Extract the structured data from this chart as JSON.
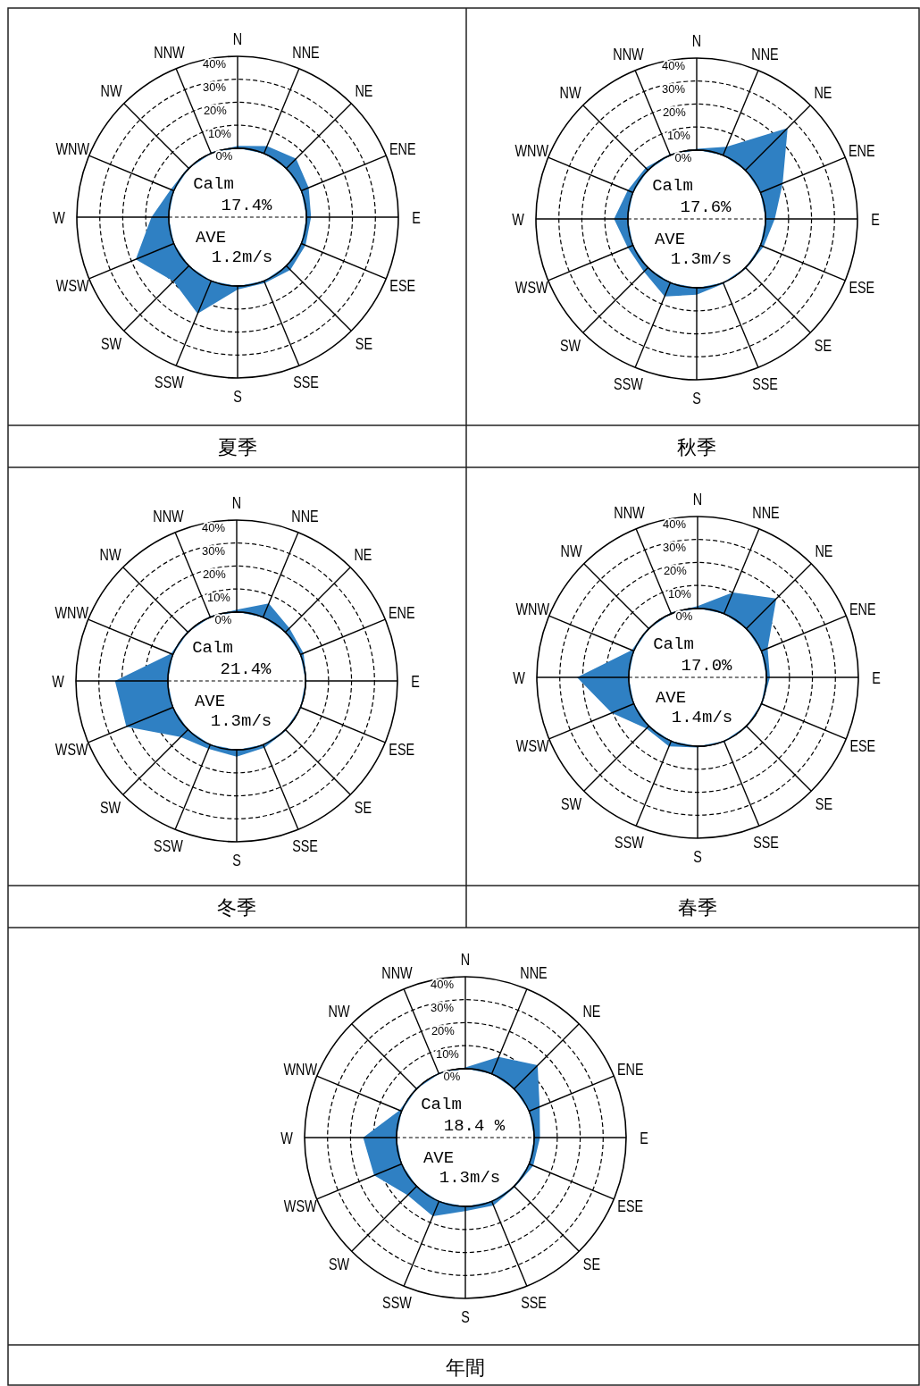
{
  "chart_data": [
    {
      "type": "radar",
      "title": "夏季",
      "categories": [
        "N",
        "NNE",
        "NE",
        "ENE",
        "E",
        "ESE",
        "SE",
        "SSE",
        "S",
        "SSW",
        "SW",
        "WSW",
        "W",
        "WNW",
        "NW",
        "NNW"
      ],
      "series": [
        {
          "color": "#2f80c3",
          "values": [
            1,
            3.5,
            6,
            3.5,
            2,
            2,
            2.5,
            1,
            1.5,
            15.5,
            9.5,
            18,
            7.5,
            1.5,
            0.5,
            0.5
          ]
        }
      ],
      "ylim": [
        -30,
        40
      ],
      "yticks": [
        {
          "value": 0,
          "label": "0%"
        },
        {
          "value": 10,
          "label": "10%"
        },
        {
          "value": 20,
          "label": "20%"
        },
        {
          "value": 30,
          "label": "30%"
        },
        {
          "value": 40,
          "label": "40%"
        }
      ],
      "grid": true,
      "annotations": [
        "Calm",
        "17.4%",
        "AVE",
        "1.2m/s"
      ]
    },
    {
      "type": "radar",
      "title": "秋季",
      "categories": [
        "N",
        "NNE",
        "NE",
        "ENE",
        "E",
        "ESE",
        "SE",
        "SSE",
        "S",
        "SSW",
        "SW",
        "WSW",
        "W",
        "WNW",
        "NW",
        "NNW"
      ],
      "series": [
        {
          "color": "#2f80c3",
          "values": [
            0.5,
            4,
            26,
            10.5,
            4,
            1.5,
            0.5,
            0.5,
            3,
            6.5,
            2.5,
            2.5,
            6,
            2.5,
            1.5,
            0.5
          ]
        }
      ],
      "ylim": [
        -30,
        40
      ],
      "yticks": [
        {
          "value": 0,
          "label": "0%"
        },
        {
          "value": 10,
          "label": "10%"
        },
        {
          "value": 20,
          "label": "20%"
        },
        {
          "value": 30,
          "label": "30%"
        },
        {
          "value": 40,
          "label": "40%"
        }
      ],
      "grid": true,
      "annotations": [
        "Calm",
        "17.6%",
        "AVE",
        "1.3m/s"
      ]
    },
    {
      "type": "radar",
      "title": "冬季",
      "categories": [
        "N",
        "NNE",
        "NE",
        "ENE",
        "E",
        "ESE",
        "SE",
        "SSE",
        "S",
        "SSW",
        "SW",
        "WSW",
        "W",
        "WNW",
        "NW",
        "NNW"
      ],
      "series": [
        {
          "color": "#2f80c3",
          "values": [
            1,
            6.5,
            2.5,
            1.5,
            0.5,
            0.5,
            0.5,
            1.5,
            3,
            2,
            4.5,
            22,
            23,
            1,
            0.5,
            0.5
          ]
        }
      ],
      "ylim": [
        -30,
        40
      ],
      "yticks": [
        {
          "value": 0,
          "label": "0%"
        },
        {
          "value": 10,
          "label": "10%"
        },
        {
          "value": 20,
          "label": "20%"
        },
        {
          "value": 30,
          "label": "30%"
        },
        {
          "value": 40,
          "label": "40%"
        }
      ],
      "grid": true,
      "annotations": [
        "Calm",
        "21.4%",
        "AVE",
        "1.3m/s"
      ]
    },
    {
      "type": "radar",
      "title": "春季",
      "categories": [
        "N",
        "NNE",
        "NE",
        "ENE",
        "E",
        "ESE",
        "SE",
        "SSE",
        "S",
        "SSW",
        "SW",
        "WSW",
        "W",
        "WNW",
        "NW",
        "NNW"
      ],
      "series": [
        {
          "color": "#2f80c3",
          "values": [
            1,
            10,
            18.5,
            3,
            1.5,
            0.5,
            0.5,
            0.5,
            0.5,
            2.5,
            1.5,
            10.5,
            22.5,
            1,
            0.5,
            0.5
          ]
        }
      ],
      "ylim": [
        -30,
        40
      ],
      "yticks": [
        {
          "value": 0,
          "label": "0%"
        },
        {
          "value": 10,
          "label": "10%"
        },
        {
          "value": 20,
          "label": "20%"
        },
        {
          "value": 30,
          "label": "30%"
        },
        {
          "value": 40,
          "label": "40%"
        }
      ],
      "grid": true,
      "annotations": [
        "Calm",
        "17.0%",
        "AVE",
        "1.4m/s"
      ]
    },
    {
      "type": "radar",
      "title": "年間",
      "categories": [
        "N",
        "NNE",
        "NE",
        "ENE",
        "E",
        "ESE",
        "SE",
        "SSE",
        "S",
        "SSW",
        "SW",
        "WSW",
        "W",
        "WNW",
        "NW",
        "NNW"
      ],
      "series": [
        {
          "color": "#2f80c3",
          "values": [
            0.5,
            8,
            14.5,
            5,
            2.5,
            2,
            0.5,
            2,
            2,
            7,
            5.5,
            13,
            14.5,
            1,
            0.5,
            0.5
          ]
        }
      ],
      "ylim": [
        -30,
        40
      ],
      "yticks": [
        {
          "value": 0,
          "label": "0%"
        },
        {
          "value": 10,
          "label": "10%"
        },
        {
          "value": 20,
          "label": "20%"
        },
        {
          "value": 30,
          "label": "30%"
        },
        {
          "value": 40,
          "label": "40%"
        }
      ],
      "grid": true,
      "annotations": [
        "Calm",
        "18.4 %",
        "AVE",
        "1.3m/s"
      ]
    }
  ]
}
